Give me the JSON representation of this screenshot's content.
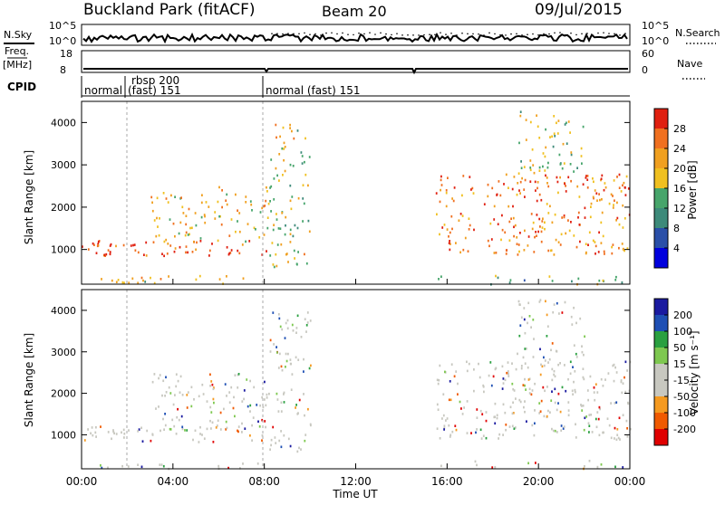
{
  "header": {
    "site": "Buckland Park (fitACF)",
    "beam": "Beam 20",
    "date": "09/Jul/2015"
  },
  "noise_panel": {
    "left_label": "N.Sky",
    "right_label": "N.Search",
    "ticks_left": [
      "10^5",
      "10^0"
    ],
    "ticks_right": [
      "10^5",
      "10^0"
    ]
  },
  "freq_panel": {
    "left_label_1": "Freq.",
    "left_label_2": "[MHz]",
    "right_label": "Nave",
    "ticks_left": [
      "18",
      "8"
    ],
    "ticks_right": [
      "60",
      "0"
    ]
  },
  "cpid_panel": {
    "label": "CPID",
    "segments": [
      {
        "label": "normal",
        "sub": ""
      },
      {
        "label": "rbsp 200",
        "sub": "(fast) 151"
      },
      {
        "label": "normal (fast) 151",
        "sub": ""
      }
    ]
  },
  "colors": {
    "power": [
      "#0000dd",
      "#2a4fa8",
      "#3d8a7a",
      "#47a56b",
      "#f0c020",
      "#f0a020",
      "#f07020",
      "#e02010"
    ],
    "velocity": [
      "#e00000",
      "#f05a00",
      "#f59a20",
      "#c8c8c0",
      "#c8c8c0",
      "#7ec850",
      "#2aa040",
      "#1e4fb4",
      "#1a1aa0"
    ]
  },
  "chart_data": [
    {
      "type": "heatmap",
      "name": "power",
      "ylabel": "Slant Range [km]",
      "ylim": [
        180,
        4500
      ],
      "yticks": [
        "1000",
        "2000",
        "3000",
        "4000"
      ],
      "colorbar_label": "Power [dB]",
      "colorbar_ticks": [
        "4",
        "8",
        "12",
        "16",
        "20",
        "24",
        "28"
      ],
      "regions": [
        {
          "t": [
            0,
            8.2
          ],
          "r": [
            850,
            1250
          ],
          "level": 0.92
        },
        {
          "t": [
            0,
            8.2
          ],
          "r": [
            180,
            400
          ],
          "level": 0.55
        },
        {
          "t": [
            3,
            8.2
          ],
          "r": [
            1200,
            2500
          ],
          "level": 0.6
        },
        {
          "t": [
            8.2,
            10
          ],
          "r": [
            600,
            4000
          ],
          "level": 0.55
        },
        {
          "t": [
            15.5,
            24
          ],
          "r": [
            900,
            1900
          ],
          "level": 0.75
        },
        {
          "t": [
            15.5,
            24
          ],
          "r": [
            2000,
            2800
          ],
          "level": 0.8
        },
        {
          "t": [
            15.5,
            24
          ],
          "r": [
            180,
            400
          ],
          "level": 0.45
        },
        {
          "t": [
            19,
            22
          ],
          "r": [
            2800,
            4300
          ],
          "level": 0.5
        }
      ]
    },
    {
      "type": "heatmap",
      "name": "velocity",
      "ylabel": "Slant Range [km]",
      "ylim": [
        180,
        4500
      ],
      "yticks": [
        "1000",
        "2000",
        "3000",
        "4000"
      ],
      "colorbar_label": "Velocity [m s⁻¹]",
      "colorbar_ticks": [
        "200",
        "100",
        "50",
        "15",
        "-15",
        "-50",
        "-100",
        "-200"
      ],
      "xlabel": "Time UT",
      "xticks": [
        "00:00",
        "04:00",
        "08:00",
        "12:00",
        "16:00",
        "20:00",
        "00:00"
      ]
    }
  ]
}
